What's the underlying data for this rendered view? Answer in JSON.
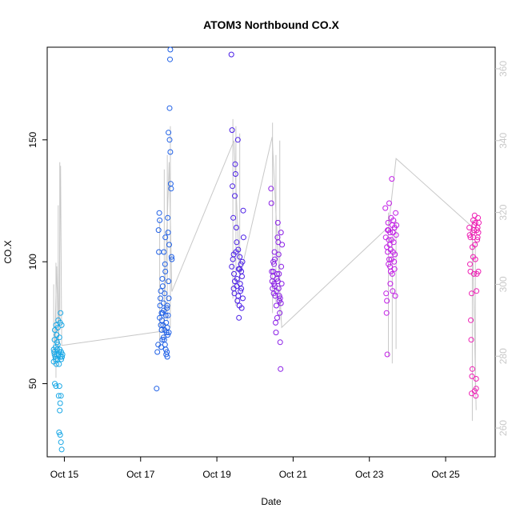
{
  "chart_data": {
    "type": "scatter",
    "title": "ATOM3 Northbound CO.X",
    "xlabel": "Date",
    "ylabel": "CO.X",
    "y_ticks": [
      50,
      100,
      150
    ],
    "y2_ticks": [
      260,
      280,
      300,
      320,
      340,
      360
    ],
    "x_ticks": [
      {
        "value": "Oct 15",
        "day": 15
      },
      {
        "value": "Oct 17",
        "day": 17
      },
      {
        "value": "Oct 19",
        "day": 19
      },
      {
        "value": "Oct 21",
        "day": 21
      },
      {
        "value": "Oct 23",
        "day": 23
      },
      {
        "value": "Oct 25",
        "day": 25
      }
    ],
    "xlim_days": [
      14.55,
      26.3
    ],
    "ylim": [
      20,
      188
    ],
    "y2lim": [
      252,
      366
    ],
    "grid": false,
    "series": [
      {
        "color": "#1aa8e6",
        "points": [
          [
            14.72,
            59
          ],
          [
            14.73,
            63
          ],
          [
            14.74,
            68
          ],
          [
            14.75,
            72
          ],
          [
            14.75,
            50
          ],
          [
            14.76,
            61
          ],
          [
            14.77,
            65
          ],
          [
            14.78,
            74
          ],
          [
            14.78,
            49
          ],
          [
            14.79,
            58
          ],
          [
            14.8,
            62
          ],
          [
            14.8,
            70
          ],
          [
            14.81,
            64
          ],
          [
            14.82,
            60
          ],
          [
            14.83,
            66
          ],
          [
            14.84,
            76
          ],
          [
            14.85,
            62
          ],
          [
            14.85,
            45
          ],
          [
            14.86,
            58
          ],
          [
            14.86,
            30
          ],
          [
            14.87,
            63
          ],
          [
            14.87,
            69
          ],
          [
            14.88,
            64
          ],
          [
            14.88,
            39
          ],
          [
            14.89,
            75
          ],
          [
            14.89,
            29
          ],
          [
            14.9,
            79
          ],
          [
            14.9,
            61
          ],
          [
            14.91,
            45
          ],
          [
            14.91,
            26
          ],
          [
            14.92,
            60
          ],
          [
            14.92,
            63
          ],
          [
            14.93,
            74
          ],
          [
            14.93,
            23
          ],
          [
            14.94,
            61
          ],
          [
            14.95,
            62
          ],
          [
            14.72,
            64
          ],
          [
            14.74,
            62
          ],
          [
            14.77,
            60
          ],
          [
            14.81,
            67
          ],
          [
            14.83,
            73
          ],
          [
            14.87,
            49
          ],
          [
            14.89,
            42
          ]
        ]
      },
      {
        "color": "#1f60e6",
        "points": [
          [
            17.42,
            48
          ],
          [
            17.44,
            63
          ],
          [
            17.46,
            66
          ],
          [
            17.47,
            113
          ],
          [
            17.48,
            104
          ],
          [
            17.49,
            120
          ],
          [
            17.5,
            117
          ],
          [
            17.51,
            82
          ],
          [
            17.52,
            85
          ],
          [
            17.53,
            88
          ],
          [
            17.54,
            65
          ],
          [
            17.55,
            72
          ],
          [
            17.56,
            76
          ],
          [
            17.57,
            93
          ],
          [
            17.58,
            79
          ],
          [
            17.59,
            74
          ],
          [
            17.6,
            69
          ],
          [
            17.61,
            80
          ],
          [
            17.62,
            68
          ],
          [
            17.63,
            87
          ],
          [
            17.64,
            66
          ],
          [
            17.65,
            96
          ],
          [
            17.66,
            78
          ],
          [
            17.67,
            62
          ],
          [
            17.68,
            71
          ],
          [
            17.69,
            63
          ],
          [
            17.7,
            61
          ],
          [
            17.7,
            73
          ],
          [
            17.71,
            118
          ],
          [
            17.72,
            112
          ],
          [
            17.73,
            153
          ],
          [
            17.73,
            92
          ],
          [
            17.74,
            85
          ],
          [
            17.75,
            107
          ],
          [
            17.76,
            150
          ],
          [
            17.76,
            163
          ],
          [
            17.77,
            183
          ],
          [
            17.78,
            187
          ],
          [
            17.78,
            145
          ],
          [
            17.79,
            132
          ],
          [
            17.8,
            130
          ],
          [
            17.81,
            102
          ],
          [
            17.82,
            101
          ],
          [
            17.6,
            83
          ],
          [
            17.55,
            79
          ],
          [
            17.5,
            77
          ],
          [
            17.67,
            75
          ],
          [
            17.7,
            82
          ],
          [
            17.72,
            78
          ],
          [
            17.74,
            71
          ],
          [
            17.58,
            90
          ],
          [
            17.64,
            99
          ],
          [
            17.61,
            104
          ],
          [
            17.65,
            110
          ],
          [
            17.69,
            81
          ],
          [
            17.71,
            70
          ],
          [
            17.53,
            74
          ],
          [
            17.57,
            68
          ],
          [
            17.63,
            72
          ],
          [
            17.66,
            64
          ]
        ]
      },
      {
        "color": "#4a1ee6",
        "points": [
          [
            19.38,
            185
          ],
          [
            19.39,
            98
          ],
          [
            19.4,
            154
          ],
          [
            19.41,
            131
          ],
          [
            19.42,
            101
          ],
          [
            19.43,
            118
          ],
          [
            19.44,
            89
          ],
          [
            19.45,
            95
          ],
          [
            19.46,
            87
          ],
          [
            19.47,
            127
          ],
          [
            19.48,
            140
          ],
          [
            19.49,
            136
          ],
          [
            19.5,
            104
          ],
          [
            19.51,
            114
          ],
          [
            19.52,
            108
          ],
          [
            19.53,
            93
          ],
          [
            19.54,
            84
          ],
          [
            19.55,
            150
          ],
          [
            19.56,
            86
          ],
          [
            19.57,
            97
          ],
          [
            19.58,
            77
          ],
          [
            19.59,
            82
          ],
          [
            19.6,
            102
          ],
          [
            19.61,
            91
          ],
          [
            19.62,
            88
          ],
          [
            19.63,
            99
          ],
          [
            19.64,
            96
          ],
          [
            19.65,
            81
          ],
          [
            19.66,
            94
          ],
          [
            19.67,
            100
          ],
          [
            19.68,
            85
          ],
          [
            19.69,
            121
          ],
          [
            19.7,
            110
          ],
          [
            19.44,
            103
          ],
          [
            19.47,
            92
          ],
          [
            19.52,
            90
          ],
          [
            19.56,
            105
          ],
          [
            19.6,
            97
          ],
          [
            19.64,
            89
          ]
        ]
      },
      {
        "color": "#8a1ee6",
        "points": [
          [
            20.42,
            130
          ],
          [
            20.43,
            124
          ],
          [
            20.44,
            96
          ],
          [
            20.45,
            92
          ],
          [
            20.46,
            89
          ],
          [
            20.47,
            94
          ],
          [
            20.48,
            100
          ],
          [
            20.49,
            87
          ],
          [
            20.5,
            99
          ],
          [
            20.51,
            104
          ],
          [
            20.52,
            90
          ],
          [
            20.53,
            86
          ],
          [
            20.54,
            75
          ],
          [
            20.55,
            71
          ],
          [
            20.56,
            82
          ],
          [
            20.57,
            93
          ],
          [
            20.58,
            77
          ],
          [
            20.59,
            110
          ],
          [
            20.6,
            116
          ],
          [
            20.61,
            108
          ],
          [
            20.62,
            103
          ],
          [
            20.63,
            95
          ],
          [
            20.64,
            84
          ],
          [
            20.65,
            79
          ],
          [
            20.66,
            67
          ],
          [
            20.67,
            56
          ],
          [
            20.68,
            112
          ],
          [
            20.69,
            98
          ],
          [
            20.7,
            91
          ],
          [
            20.71,
            107
          ],
          [
            20.48,
            96
          ],
          [
            20.52,
            101
          ],
          [
            20.56,
            88
          ],
          [
            20.6,
            92
          ],
          [
            20.64,
            86
          ],
          [
            20.68,
            83
          ],
          [
            20.5,
            91
          ],
          [
            20.58,
            95
          ],
          [
            20.62,
            89
          ],
          [
            20.66,
            85
          ]
        ]
      },
      {
        "color": "#c21ee6",
        "points": [
          [
            23.42,
            122
          ],
          [
            23.43,
            110
          ],
          [
            23.44,
            87
          ],
          [
            23.45,
            79
          ],
          [
            23.46,
            84
          ],
          [
            23.47,
            62
          ],
          [
            23.48,
            104
          ],
          [
            23.49,
            116
          ],
          [
            23.5,
            113
          ],
          [
            23.51,
            109
          ],
          [
            23.52,
            124
          ],
          [
            23.53,
            107
          ],
          [
            23.54,
            98
          ],
          [
            23.55,
            91
          ],
          [
            23.56,
            105
          ],
          [
            23.57,
            118
          ],
          [
            23.58,
            101
          ],
          [
            23.59,
            134
          ],
          [
            23.6,
            95
          ],
          [
            23.61,
            88
          ],
          [
            23.62,
            112
          ],
          [
            23.63,
            117
          ],
          [
            23.64,
            108
          ],
          [
            23.65,
            100
          ],
          [
            23.66,
            114
          ],
          [
            23.67,
            103
          ],
          [
            23.68,
            86
          ],
          [
            23.69,
            120
          ],
          [
            23.7,
            111
          ],
          [
            23.71,
            115
          ],
          [
            23.46,
            106
          ],
          [
            23.5,
            99
          ],
          [
            23.54,
            112
          ],
          [
            23.58,
            109
          ],
          [
            23.62,
            104
          ],
          [
            23.66,
            97
          ],
          [
            23.48,
            113
          ],
          [
            23.52,
            101
          ],
          [
            23.56,
            96
          ],
          [
            23.6,
            115
          ]
        ]
      },
      {
        "color": "#ee1eb4",
        "points": [
          [
            25.62,
            114
          ],
          [
            25.63,
            111
          ],
          [
            25.64,
            99
          ],
          [
            25.65,
            96
          ],
          [
            25.66,
            76
          ],
          [
            25.67,
            68
          ],
          [
            25.68,
            46
          ],
          [
            25.69,
            53
          ],
          [
            25.7,
            56
          ],
          [
            25.71,
            112
          ],
          [
            25.72,
            117
          ],
          [
            25.73,
            110
          ],
          [
            25.74,
            113
          ],
          [
            25.75,
            115
          ],
          [
            25.76,
            119
          ],
          [
            25.77,
            107
          ],
          [
            25.78,
            101
          ],
          [
            25.79,
            45
          ],
          [
            25.8,
            48
          ],
          [
            25.81,
            88
          ],
          [
            25.82,
            95
          ],
          [
            25.83,
            109
          ],
          [
            25.84,
            114
          ],
          [
            25.85,
            118
          ],
          [
            25.86,
            112
          ],
          [
            25.87,
            116
          ],
          [
            25.65,
            110
          ],
          [
            25.7,
            106
          ],
          [
            25.74,
            95
          ],
          [
            25.78,
            116
          ],
          [
            25.82,
            113
          ],
          [
            25.86,
            96
          ],
          [
            25.68,
            87
          ],
          [
            25.72,
            102
          ],
          [
            25.76,
            47
          ],
          [
            25.8,
            52
          ],
          [
            25.84,
            110
          ]
        ]
      }
    ]
  }
}
